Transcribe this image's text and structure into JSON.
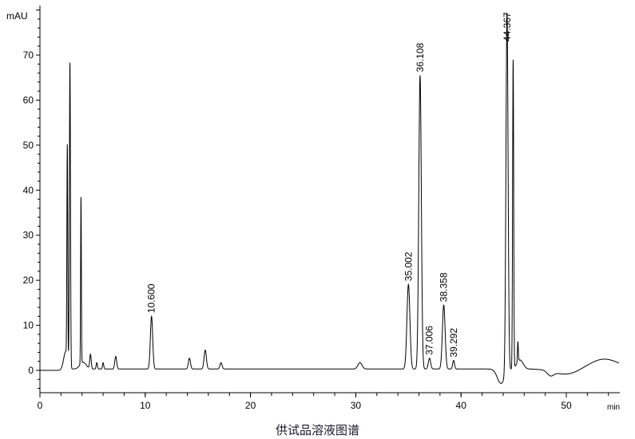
{
  "chart_data": {
    "type": "line",
    "title": "",
    "caption": "供试品溶液图谱",
    "xlabel": "min",
    "ylabel": "mAU",
    "xlim": [
      0,
      55
    ],
    "ylim": [
      -5,
      81
    ],
    "x_ticks": [
      0,
      10,
      20,
      30,
      40,
      50
    ],
    "y_ticks": [
      0,
      10,
      20,
      30,
      40,
      50,
      60,
      70
    ],
    "grid": false,
    "line_color": "#000000",
    "baseline": 0.3,
    "peaks": [
      {
        "rt": 2.45,
        "height": 4,
        "width": 0.2
      },
      {
        "rt": 2.6,
        "height": 47,
        "width": 0.04
      },
      {
        "rt": 2.85,
        "height": 67.5,
        "width": 0.05
      },
      {
        "rt": 3.9,
        "height": 37,
        "width": 0.035
      },
      {
        "rt": 4.1,
        "height": 1.5,
        "width": 0.3
      },
      {
        "rt": 4.8,
        "height": 3.2,
        "width": 0.07
      },
      {
        "rt": 5.4,
        "height": 1.4,
        "width": 0.06
      },
      {
        "rt": 6.0,
        "height": 1.4,
        "width": 0.06
      },
      {
        "rt": 7.2,
        "height": 2.8,
        "width": 0.09
      },
      {
        "rt": 10.6,
        "height": 11.7,
        "width": 0.11,
        "label": "10.600"
      },
      {
        "rt": 14.2,
        "height": 2.4,
        "width": 0.1
      },
      {
        "rt": 15.7,
        "height": 4.2,
        "width": 0.11
      },
      {
        "rt": 17.2,
        "height": 1.4,
        "width": 0.1
      },
      {
        "rt": 30.4,
        "height": 1.4,
        "width": 0.2
      },
      {
        "rt": 35.002,
        "height": 18.8,
        "width": 0.14,
        "label": "35.002"
      },
      {
        "rt": 36.108,
        "height": 65.2,
        "width": 0.12,
        "label": "36.108"
      },
      {
        "rt": 37.006,
        "height": 2.4,
        "width": 0.11,
        "label": "37.006"
      },
      {
        "rt": 38.358,
        "height": 14.2,
        "width": 0.13,
        "label": "38.358"
      },
      {
        "rt": 39.292,
        "height": 1.9,
        "width": 0.09,
        "label": "39.292"
      },
      {
        "rt": 43.8,
        "height": -3.2,
        "width": 0.35
      },
      {
        "rt": 44.367,
        "height": 80,
        "width": 0.1,
        "label": "44.367"
      },
      {
        "rt": 44.95,
        "height": 68.5,
        "width": 0.05
      },
      {
        "rt": 45.4,
        "height": 4.5,
        "width": 0.04
      },
      {
        "rt": 45.6,
        "height": 2,
        "width": 0.3
      },
      {
        "rt": 48.5,
        "height": -1,
        "width": 0.3
      },
      {
        "rt": 50.0,
        "height": -1.2,
        "width": 1.2
      },
      {
        "rt": 53.6,
        "height": 2.2,
        "width": 1.4
      }
    ]
  }
}
